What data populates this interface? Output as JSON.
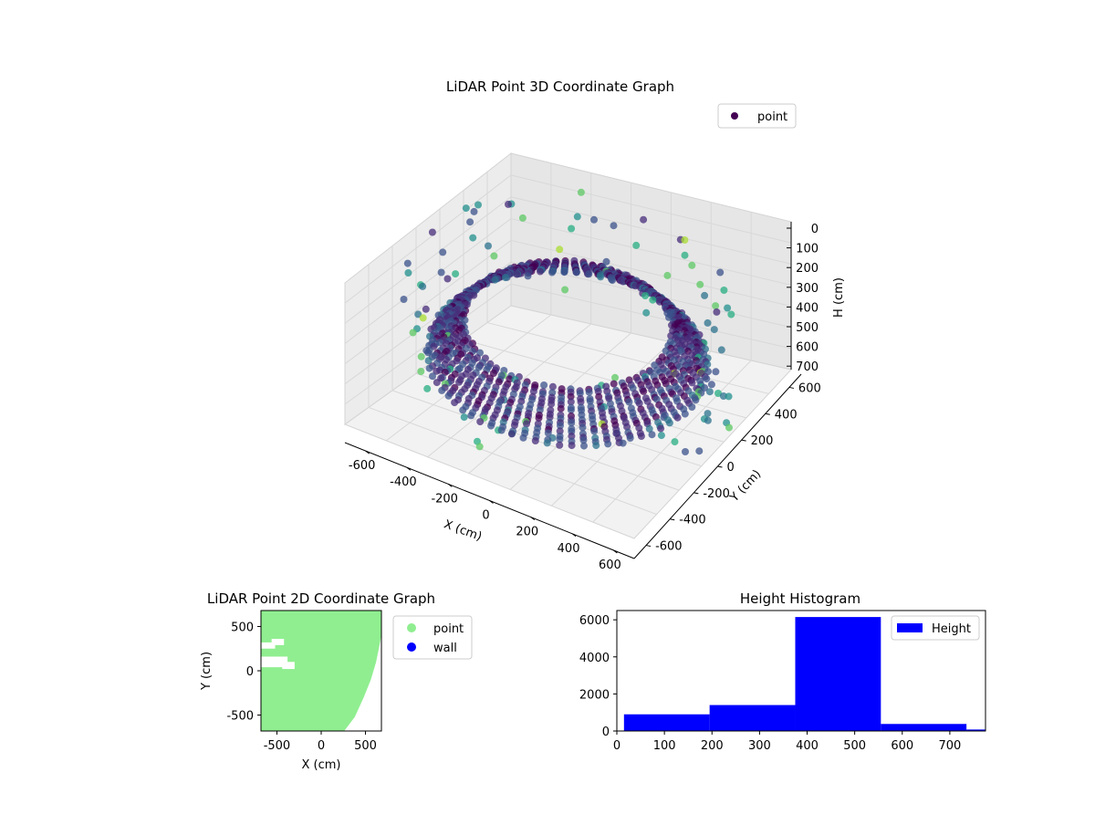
{
  "chart_data": [
    {
      "type": "scatter3d",
      "title": "LiDAR Point 3D Coordinate Graph",
      "xlabel": "X (cm)",
      "ylabel": "Y (cm)",
      "zlabel": "H (cm)",
      "xlim": [
        -700,
        700
      ],
      "ylim": [
        -700,
        700
      ],
      "zlim": [
        0,
        750
      ],
      "z_axis_inverted": true,
      "x_ticks": [
        "-600",
        "-400",
        "-200",
        "0",
        "200",
        "400",
        "600"
      ],
      "y_ticks": [
        "-600",
        "-400",
        "-200",
        "0",
        "200",
        "400",
        "600"
      ],
      "z_ticks": [
        "0",
        "100",
        "200",
        "300",
        "400",
        "500",
        "600",
        "700"
      ],
      "colormap": "viridis",
      "legend": {
        "label": "point",
        "placement": "upper-right",
        "color": "#440154"
      },
      "series": [
        {
          "name": "point",
          "description_shape": "ring of points around sensor",
          "ring_radius_cm": 520,
          "height_range_cm": [
            380,
            560
          ]
        }
      ]
    },
    {
      "type": "scatter",
      "title": "LiDAR Point 2D Coordinate Graph",
      "xlabel": "X (cm)",
      "ylabel": "Y (cm)",
      "xlim": [
        -680,
        680
      ],
      "ylim": [
        -680,
        680
      ],
      "x_ticks": [
        "-500",
        "0",
        "500"
      ],
      "y_ticks": [
        "500",
        "0",
        "-500"
      ],
      "legend": {
        "placement": "outside-right",
        "entries": [
          {
            "label": "point",
            "color": "#90ee90"
          },
          {
            "label": "wall",
            "color": "#0000ff"
          }
        ]
      }
    },
    {
      "type": "bar",
      "title": "Height Histogram",
      "xlim": [
        0,
        775
      ],
      "ylim": [
        0,
        6500
      ],
      "x_ticks": [
        "0",
        "100",
        "200",
        "300",
        "400",
        "500",
        "600",
        "700"
      ],
      "y_ticks": [
        "0",
        "2000",
        "4000",
        "6000"
      ],
      "color": "#0000ff",
      "legend": {
        "label": "Height",
        "placement": "upper-right"
      },
      "bins": [
        {
          "x0": 15,
          "x1": 195,
          "count": 900
        },
        {
          "x0": 195,
          "x1": 375,
          "count": 1400
        },
        {
          "x0": 375,
          "x1": 555,
          "count": 6150
        },
        {
          "x0": 555,
          "x1": 735,
          "count": 380
        },
        {
          "x0": 735,
          "x1": 775,
          "count": 80
        }
      ]
    }
  ]
}
